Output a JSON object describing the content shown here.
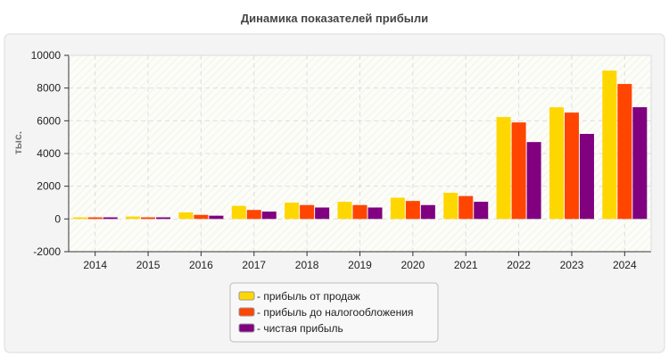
{
  "chart_data": {
    "type": "bar",
    "title": "Динамика показателей прибыли",
    "ylabel": "тыс.",
    "xlabel": "",
    "ylim": [
      -2000,
      10000
    ],
    "yticks": [
      -2000,
      0,
      2000,
      4000,
      6000,
      8000,
      10000
    ],
    "grid": true,
    "legend_position": "bottom-center",
    "categories": [
      "2014",
      "2015",
      "2016",
      "2017",
      "2018",
      "2019",
      "2020",
      "2021",
      "2022",
      "2023",
      "2024"
    ],
    "series": [
      {
        "name": "- прибыль от продаж",
        "color": "#FFD700",
        "values": [
          100,
          150,
          400,
          800,
          1000,
          1050,
          1300,
          1600,
          6230,
          6830,
          9070
        ]
      },
      {
        "name": "- прибыль до налогообложения",
        "color": "#FF4500",
        "values": [
          100,
          100,
          250,
          550,
          850,
          850,
          1100,
          1400,
          5900,
          6500,
          8250
        ]
      },
      {
        "name": "- чистая прибыль",
        "color": "#800080",
        "values": [
          100,
          100,
          200,
          450,
          700,
          700,
          850,
          1050,
          4700,
          5200,
          6830
        ]
      }
    ]
  }
}
